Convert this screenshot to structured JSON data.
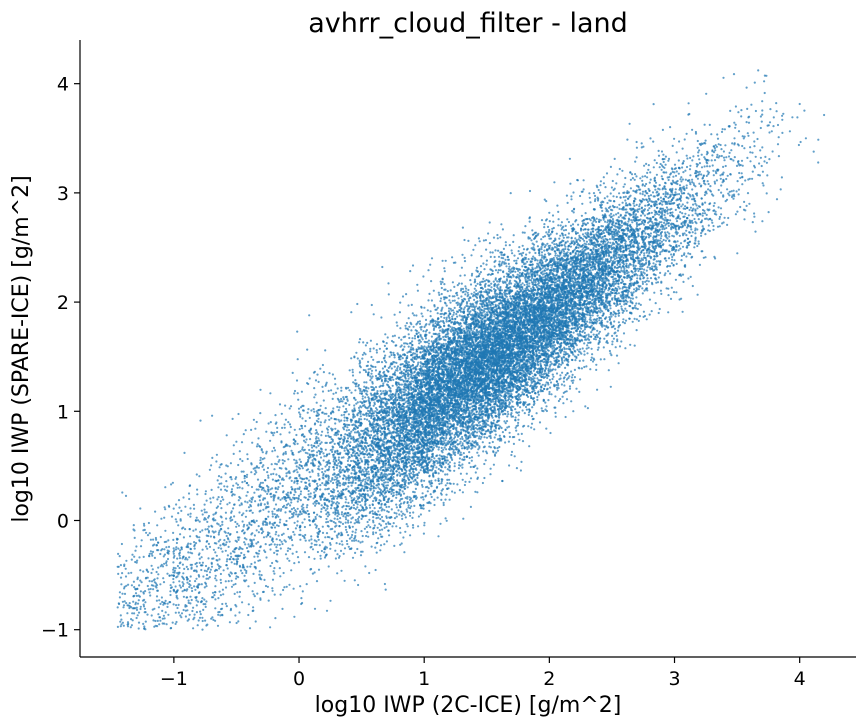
{
  "chart_data": {
    "type": "scatter",
    "title": "avhrr_cloud_filter - land",
    "xlabel": "log10 IWP (2C-ICE) [g/m^2]",
    "ylabel": "log10 IWP (SPARE-ICE) [g/m^2]",
    "xlim": [
      -1.75,
      4.45
    ],
    "ylim": [
      -1.25,
      4.4
    ],
    "xticks": [
      -1,
      0,
      1,
      2,
      3,
      4
    ],
    "yticks": [
      -1,
      0,
      1,
      2,
      3,
      4
    ],
    "xtick_labels": [
      "−1",
      "0",
      "1",
      "2",
      "3",
      "4"
    ],
    "ytick_labels": [
      "−1",
      "0",
      "1",
      "2",
      "3",
      "4"
    ],
    "grid": false,
    "spines": [
      "left",
      "bottom"
    ],
    "series": [
      {
        "name": "land",
        "color": "#1f77b4",
        "marker_alpha": 0.7,
        "approx_point_count": 20000,
        "trend": {
          "slope": 0.88,
          "intercept": 0.15
        },
        "density_peak": {
          "x": 1.4,
          "y": 1.35
        },
        "x_range": [
          -1.45,
          4.2
        ],
        "y_range": [
          -1.0,
          4.15
        ]
      }
    ]
  }
}
